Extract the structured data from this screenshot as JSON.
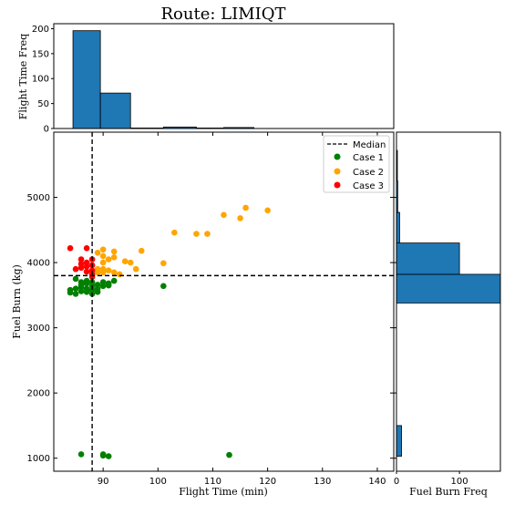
{
  "chart_data": {
    "type": "scatter",
    "title": "Route: LIMIQT",
    "scatter": {
      "xlabel": "Flight Time (min)",
      "ylabel": "Fuel Burn (kg)",
      "xlim": [
        81,
        143
      ],
      "ylim": [
        800,
        6000
      ],
      "xticks": [
        90,
        100,
        110,
        120,
        130,
        140
      ],
      "yticks": [
        1000,
        2000,
        3000,
        4000,
        5000
      ],
      "median": {
        "x": 88,
        "y": 3800
      },
      "legend_position": "upper right",
      "series": [
        {
          "name": "Case 1",
          "color": "#008000",
          "points": [
            [
              84,
              3580
            ],
            [
              84,
              3540
            ],
            [
              85,
              3520
            ],
            [
              85,
              3600
            ],
            [
              85,
              3750
            ],
            [
              86,
              3700
            ],
            [
              86,
              3650
            ],
            [
              86,
              3560
            ],
            [
              86,
              3620
            ],
            [
              87,
              3680
            ],
            [
              87,
              3600
            ],
            [
              87,
              3550
            ],
            [
              87,
              3720
            ],
            [
              88,
              3640
            ],
            [
              88,
              3700
            ],
            [
              88,
              3520
            ],
            [
              88,
              3580
            ],
            [
              89,
              3660
            ],
            [
              89,
              3600
            ],
            [
              89,
              3550
            ],
            [
              90,
              3700
            ],
            [
              90,
              3640
            ],
            [
              91,
              3680
            ],
            [
              91,
              3650
            ],
            [
              92,
              3720
            ],
            [
              101,
              3640
            ],
            [
              86,
              1060
            ],
            [
              90,
              1060
            ],
            [
              90,
              1040
            ],
            [
              91,
              1030
            ],
            [
              113,
              1050
            ]
          ]
        },
        {
          "name": "Case 2",
          "color": "#FFA500",
          "points": [
            [
              89,
              4150
            ],
            [
              89,
              3900
            ],
            [
              89,
              3850
            ],
            [
              90,
              4200
            ],
            [
              90,
              4100
            ],
            [
              90,
              4000
            ],
            [
              90,
              3900
            ],
            [
              90,
              3850
            ],
            [
              91,
              4050
            ],
            [
              91,
              3880
            ],
            [
              92,
              4170
            ],
            [
              92,
              4080
            ],
            [
              92,
              3850
            ],
            [
              93,
              3820
            ],
            [
              94,
              4020
            ],
            [
              95,
              4000
            ],
            [
              96,
              3900
            ],
            [
              97,
              4180
            ],
            [
              101,
              3990
            ],
            [
              103,
              4460
            ],
            [
              107,
              4440
            ],
            [
              109,
              4440
            ],
            [
              112,
              4730
            ],
            [
              115,
              4680
            ],
            [
              116,
              4840
            ],
            [
              120,
              4800
            ]
          ]
        },
        {
          "name": "Case 3",
          "color": "#FF0000",
          "points": [
            [
              84,
              4220
            ],
            [
              85,
              3900
            ],
            [
              86,
              4050
            ],
            [
              86,
              3980
            ],
            [
              86,
              3920
            ],
            [
              87,
              4220
            ],
            [
              87,
              4000
            ],
            [
              87,
              3940
            ],
            [
              87,
              3860
            ],
            [
              88,
              4050
            ],
            [
              88,
              3960
            ],
            [
              88,
              3880
            ],
            [
              88,
              3820
            ],
            [
              88,
              3780
            ]
          ]
        }
      ],
      "median_label": "Median"
    },
    "top_hist": {
      "ylabel": "Flight Time Freq",
      "ylim": [
        0,
        210
      ],
      "yticks": [
        0,
        50,
        100,
        150,
        200
      ],
      "bins": [
        [
          84.5,
          89.5,
          196
        ],
        [
          89.5,
          95,
          71
        ],
        [
          95,
          101,
          1
        ],
        [
          101,
          107,
          3
        ],
        [
          107,
          112,
          1
        ],
        [
          112,
          117.5,
          2
        ],
        [
          117.5,
          123,
          0
        ],
        [
          123,
          129,
          0
        ],
        [
          129,
          134.5,
          0
        ],
        [
          134.5,
          140,
          0
        ]
      ]
    },
    "right_hist": {
      "xlabel": "Fuel Burn Freq",
      "xlim": [
        0,
        165
      ],
      "xticks": [
        0,
        100
      ],
      "bins": [
        [
          1030,
          1500,
          8
        ],
        [
          3380,
          3820,
          165
        ],
        [
          3820,
          4300,
          100
        ],
        [
          4300,
          4770,
          5
        ],
        [
          4770,
          5250,
          2
        ],
        [
          5250,
          5720,
          1
        ]
      ]
    }
  }
}
